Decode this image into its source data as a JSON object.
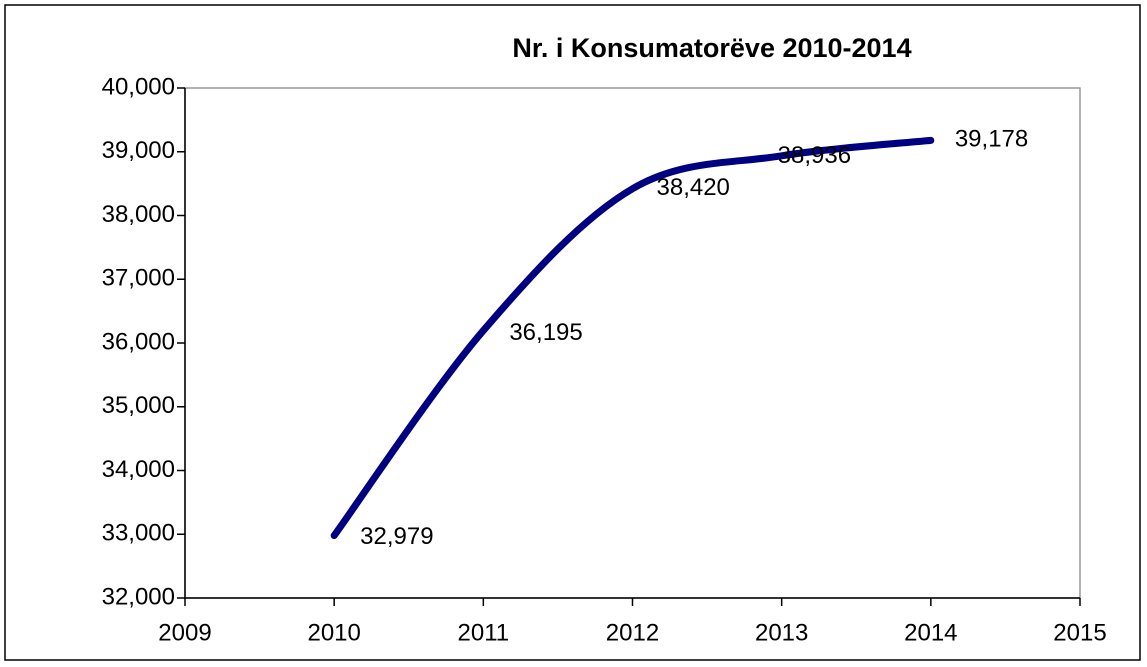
{
  "chart_data": {
    "type": "line",
    "title": "Nr. i Konsumatorëve  2010-2014",
    "x": [
      2010,
      2011,
      2012,
      2013,
      2014
    ],
    "series": [
      {
        "color": "#000080",
        "values": [
          32979,
          36195,
          38420,
          38936,
          39178
        ],
        "value_labels": [
          "32,979",
          "36,195",
          "38,420",
          "38,936",
          "39,178"
        ]
      }
    ],
    "xlim": [
      2009,
      2015
    ],
    "xticks": [
      2009,
      2010,
      2011,
      2012,
      2013,
      2014,
      2015
    ],
    "ylim": [
      32000,
      40000
    ],
    "yticks": [
      {
        "value": 32000,
        "label": "32,000"
      },
      {
        "value": 33000,
        "label": "33,000"
      },
      {
        "value": 34000,
        "label": "34,000"
      },
      {
        "value": 35000,
        "label": "35,000"
      },
      {
        "value": 36000,
        "label": "36,000"
      },
      {
        "value": 37000,
        "label": "37,000"
      },
      {
        "value": 38000,
        "label": "38,000"
      },
      {
        "value": 39000,
        "label": "39,000"
      },
      {
        "value": 40000,
        "label": "40,000"
      }
    ],
    "grid": false,
    "smooth": true
  }
}
